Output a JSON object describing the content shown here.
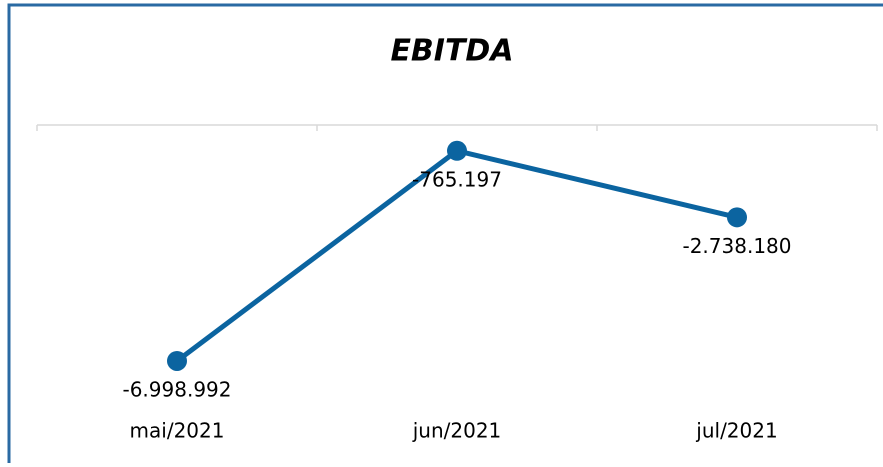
{
  "chart_data": {
    "type": "line",
    "title": "EBITDA",
    "categories": [
      "mai/2021",
      "jun/2021",
      "jul/2021"
    ],
    "series": [
      {
        "name": "EBITDA",
        "color": "#0b64a0",
        "values": [
          -6998992,
          -765197,
          -2738180
        ],
        "value_labels": [
          "-6.998.992",
          "-765.197",
          "-2.738.180"
        ]
      }
    ],
    "ylim": [
      -7000000,
      0
    ]
  }
}
